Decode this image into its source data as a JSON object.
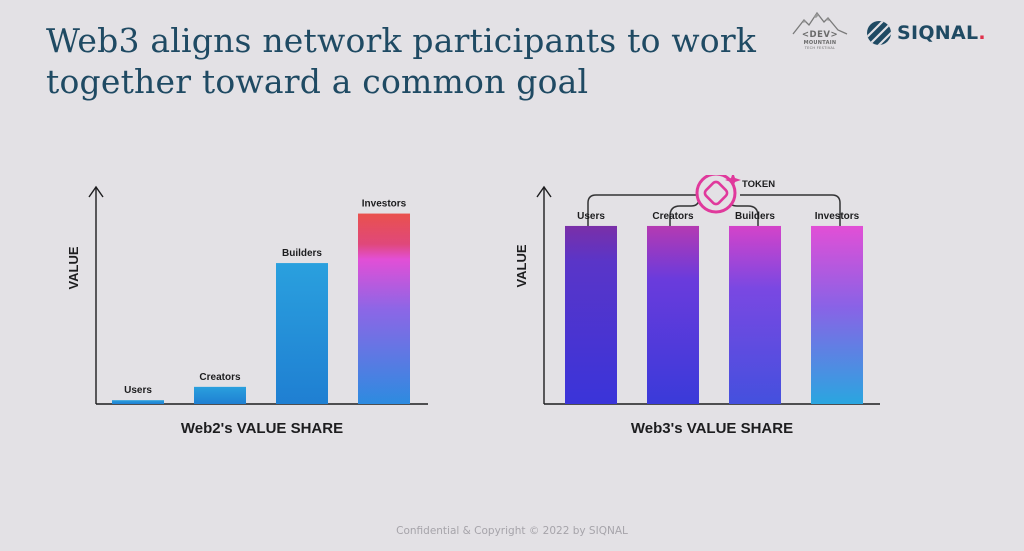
{
  "slide": {
    "title": "Web3 aligns network participants to work together toward a common goal",
    "footer": "Confidential & Copyright © 2022 by SIQNAL"
  },
  "logos": {
    "dev_mountain": {
      "line1": "<DEV>",
      "line2": "MOUNTAIN",
      "line3": "TECH FESTIVAL",
      "icon": "mountain-icon"
    },
    "siqnal": {
      "name": "SIQNAL",
      "dot": ".",
      "icon": "siqnal-logo-icon",
      "color": "#1f4a63",
      "dot_color": "#e0314b"
    }
  },
  "chart_data": [
    {
      "type": "bar",
      "title": "Web2's VALUE SHARE",
      "ylabel": "VALUE",
      "xlabel": "",
      "categories": [
        "Users",
        "Creators",
        "Builders",
        "Investors"
      ],
      "values": [
        2,
        9,
        74,
        100
      ],
      "ylim": [
        0,
        115
      ],
      "axis_ticks": false
    },
    {
      "type": "bar",
      "title": "Web3's VALUE SHARE",
      "ylabel": "VALUE",
      "xlabel": "",
      "categories": [
        "Users",
        "Creators",
        "Builders",
        "Investors"
      ],
      "values": [
        100,
        100,
        100,
        100
      ],
      "ylim": [
        0,
        123
      ],
      "axis_ticks": false,
      "annotation": {
        "label": "TOKEN",
        "icon": "token-icon",
        "color": "#e0399c"
      }
    }
  ]
}
